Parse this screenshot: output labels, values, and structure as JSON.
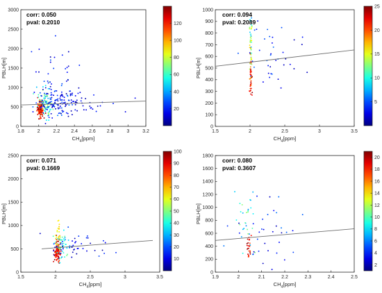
{
  "chart_data": [
    {
      "type": "scatter",
      "panel": "top-left",
      "xlabel": "CH",
      "xlabel_sub": "4",
      "xlabel_unit": "[ppm]",
      "ylabel": "PBLH[m]",
      "xlim": [
        1.8,
        3.2
      ],
      "ylim": [
        0,
        3000
      ],
      "xticks": [
        "1.8",
        "2",
        "2.2",
        "2.4",
        "2.6",
        "2.8",
        "3",
        "3.2"
      ],
      "yticks": [
        "0",
        "500",
        "1000",
        "1500",
        "2000",
        "2500",
        "3000"
      ],
      "colorbar": {
        "min": 0,
        "max": 140,
        "ticks": [
          "20",
          "40",
          "60",
          "80",
          "100",
          "120"
        ]
      },
      "annotations": {
        "corr": "corr: 0.050",
        "pval": "pval: 0.2010"
      },
      "trend_line": {
        "x": [
          1.8,
          3.2
        ],
        "y": [
          550,
          650
        ]
      },
      "clusters": [
        {
          "cx": 2.02,
          "sx": 0.02,
          "cy": 460,
          "sy": 110,
          "c0": 105,
          "c1": 140,
          "n": 120
        },
        {
          "cx": 2.08,
          "sx": 0.04,
          "cy": 620,
          "sy": 190,
          "c0": 40,
          "c1": 80,
          "n": 70
        },
        {
          "cx": 2.2,
          "sx": 0.12,
          "cy": 640,
          "sy": 170,
          "c0": 5,
          "c1": 35,
          "n": 130
        },
        {
          "cx": 2.15,
          "sx": 0.12,
          "cy": 1300,
          "sy": 420,
          "c0": 5,
          "c1": 30,
          "n": 30
        },
        {
          "cx": 2.55,
          "sx": 0.22,
          "cy": 620,
          "sy": 160,
          "c0": 5,
          "c1": 22,
          "n": 35
        }
      ]
    },
    {
      "type": "scatter",
      "panel": "top-right",
      "xlabel": "CH",
      "xlabel_sub": "4",
      "xlabel_unit": "[ppm]",
      "ylabel": "PBLH[m]",
      "xlim": [
        1.5,
        3.5
      ],
      "ylim": [
        0,
        1000
      ],
      "xticks": [
        "1.5",
        "2",
        "2.5",
        "3",
        "3.5"
      ],
      "yticks": [
        "0",
        "100",
        "200",
        "300",
        "400",
        "500",
        "600",
        "700",
        "800",
        "900",
        "1000"
      ],
      "colorbar": {
        "min": 0,
        "max": 25,
        "ticks": [
          "5",
          "10",
          "15",
          "20",
          "25"
        ]
      },
      "annotations": {
        "corr": "corr: 0.094",
        "pval": "pval: 0.2089"
      },
      "trend_line": {
        "x": [
          1.5,
          3.5
        ],
        "y": [
          515,
          655
        ]
      },
      "clusters": [
        {
          "cx": 2.01,
          "sx": 0.008,
          "cy": 420,
          "sy": 90,
          "c0": 18,
          "c1": 25,
          "n": 45
        },
        {
          "cx": 2.01,
          "sx": 0.008,
          "cy": 650,
          "sy": 100,
          "c0": 12,
          "c1": 17,
          "n": 30
        },
        {
          "cx": 2.01,
          "sx": 0.01,
          "cy": 760,
          "sy": 70,
          "c0": 6,
          "c1": 11,
          "n": 12
        },
        {
          "cx": 2.35,
          "sx": 0.25,
          "cy": 620,
          "sy": 170,
          "c0": 1,
          "c1": 6,
          "n": 40
        }
      ]
    },
    {
      "type": "scatter",
      "panel": "bottom-left",
      "xlabel": "CH",
      "xlabel_sub": "4",
      "xlabel_unit": "[ppm]",
      "ylabel": "PBLH[m]",
      "xlim": [
        1.5,
        3.5
      ],
      "ylim": [
        0,
        2500
      ],
      "xticks": [
        "1.5",
        "2",
        "2.5",
        "3",
        "3.5"
      ],
      "yticks": [
        "0",
        "500",
        "1000",
        "1500",
        "2000",
        "2500"
      ],
      "colorbar": {
        "min": 0,
        "max": 100,
        "ticks": [
          "10",
          "20",
          "30",
          "40",
          "50",
          "60",
          "70",
          "80",
          "90",
          "100"
        ]
      },
      "annotations": {
        "corr": "corr: 0.071",
        "pval": "pval: 0.1669"
      },
      "trend_line": {
        "x": [
          1.8,
          3.4
        ],
        "y": [
          500,
          680
        ]
      },
      "clusters": [
        {
          "cx": 2.03,
          "sx": 0.02,
          "cy": 430,
          "sy": 130,
          "c0": 80,
          "c1": 100,
          "n": 110
        },
        {
          "cx": 2.04,
          "sx": 0.02,
          "cy": 800,
          "sy": 170,
          "c0": 55,
          "c1": 70,
          "n": 25
        },
        {
          "cx": 2.1,
          "sx": 0.06,
          "cy": 560,
          "sy": 160,
          "c0": 25,
          "c1": 50,
          "n": 45
        },
        {
          "cx": 2.3,
          "sx": 0.25,
          "cy": 580,
          "sy": 170,
          "c0": 3,
          "c1": 20,
          "n": 45
        }
      ]
    },
    {
      "type": "scatter",
      "panel": "bottom-right",
      "xlabel": "CH",
      "xlabel_sub": "4",
      "xlabel_unit": "[ppm]",
      "ylabel": "PBLH[m]",
      "xlim": [
        1.9,
        2.5
      ],
      "ylim": [
        0,
        1800
      ],
      "xticks": [
        "1.9",
        "2",
        "2.1",
        "2.2",
        "2.3",
        "2.4",
        "2.5"
      ],
      "yticks": [
        "0",
        "200",
        "400",
        "600",
        "800",
        "1000",
        "1200",
        "1400",
        "1600",
        "1800"
      ],
      "colorbar": {
        "min": 1,
        "max": 21,
        "ticks": [
          "2",
          "4",
          "6",
          "8",
          "10",
          "12",
          "14",
          "16",
          "18",
          "20"
        ]
      },
      "annotations": {
        "corr": "corr: 0.080",
        "pval": "pval: 0.3607"
      },
      "trend_line": {
        "x": [
          1.9,
          2.5
        ],
        "y": [
          490,
          670
        ]
      },
      "clusters": [
        {
          "cx": 2.045,
          "sx": 0.006,
          "cy": 380,
          "sy": 90,
          "c0": 17,
          "c1": 21,
          "n": 25
        },
        {
          "cx": 2.03,
          "sx": 0.02,
          "cy": 700,
          "sy": 250,
          "c0": 6,
          "c1": 12,
          "n": 30
        },
        {
          "cx": 2.12,
          "sx": 0.07,
          "cy": 650,
          "sy": 300,
          "c0": 2,
          "c1": 6,
          "n": 35
        }
      ]
    }
  ]
}
